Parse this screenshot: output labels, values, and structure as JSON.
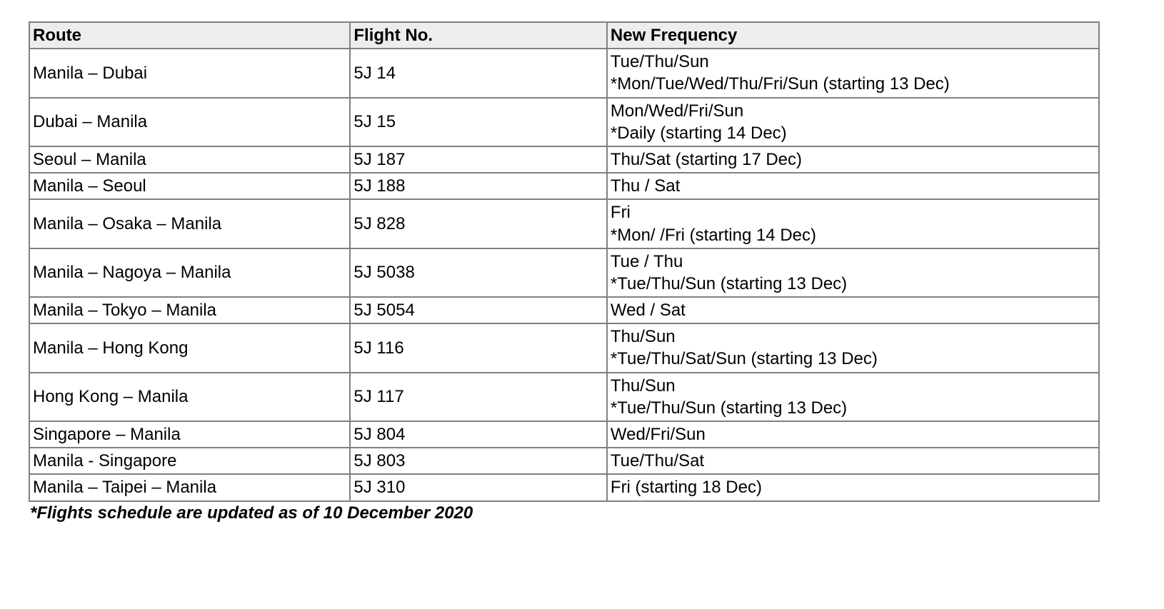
{
  "table": {
    "columns": [
      "Route",
      "Flight No.",
      "New Frequency"
    ],
    "rows": [
      {
        "route": "Manila – Dubai",
        "flight": "5J 14",
        "frequency": "Tue/Thu/Sun\n*Mon/Tue/Wed/Thu/Fri/Sun (starting 13 Dec)"
      },
      {
        "route": "Dubai – Manila",
        "flight": "5J 15",
        "frequency": "Mon/Wed/Fri/Sun\n*Daily (starting 14 Dec)"
      },
      {
        "route": "Seoul – Manila",
        "flight": "5J 187",
        "frequency": "Thu/Sat (starting 17 Dec)"
      },
      {
        "route": "Manila – Seoul",
        "flight": "5J 188",
        "frequency": "Thu / Sat"
      },
      {
        "route": "Manila – Osaka – Manila",
        "flight": "5J 828",
        "frequency": "Fri\n*Mon/ /Fri (starting 14 Dec)"
      },
      {
        "route": "Manila – Nagoya – Manila",
        "flight": "5J 5038",
        "frequency": "Tue / Thu\n*Tue/Thu/Sun (starting 13 Dec)"
      },
      {
        "route": "Manila – Tokyo – Manila",
        "flight": "5J 5054",
        "frequency": "Wed / Sat"
      },
      {
        "route": "Manila – Hong Kong",
        "flight": "5J 116",
        "frequency": "Thu/Sun\n*Tue/Thu/Sat/Sun (starting 13 Dec)"
      },
      {
        "route": "Hong Kong – Manila",
        "flight": "5J 117",
        "frequency": "Thu/Sun\n*Tue/Thu/Sun (starting 13 Dec)"
      },
      {
        "route": "Singapore – Manila",
        "flight": "5J 804",
        "frequency": "Wed/Fri/Sun"
      },
      {
        "route": "Manila - Singapore",
        "flight": "5J 803",
        "frequency": "Tue/Thu/Sat"
      },
      {
        "route": "Manila – Taipei – Manila",
        "flight": "5J 310",
        "frequency": "Fri (starting 18 Dec)"
      }
    ],
    "header_bg": "#ededed",
    "border_color": "#808080",
    "font_size_pt": 18,
    "col_widths_pct": [
      30,
      24,
      46
    ]
  },
  "footnote": "*Flights schedule are updated as of 10 December 2020"
}
